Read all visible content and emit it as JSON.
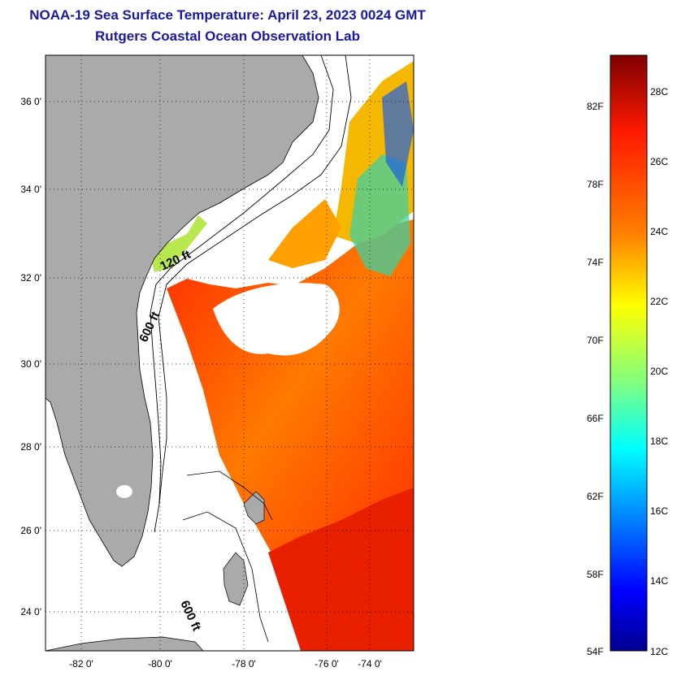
{
  "header": {
    "title": "NOAA-19 Sea Surface Temperature:  April 23, 2023 0024 GMT",
    "subtitle": "Rutgers Coastal Ocean Observation Lab"
  },
  "map": {
    "latitude_labels": [
      "36 0'",
      "34 0'",
      "32 0'",
      "30 0'",
      "28 0'",
      "26 0'",
      "24 0'"
    ],
    "longitude_labels": [
      "-82 0'",
      "-80 0'",
      "-78 0'",
      "-76 0'",
      "-74 0'"
    ],
    "depth_labels": [
      "120 ft",
      "600 ft",
      "600 ft"
    ],
    "colors": {
      "land": "#aaaaaa",
      "no_data": "#ffffff",
      "frame": "#000000"
    }
  },
  "colorbar": {
    "fahrenheit_labels": [
      "82F",
      "78F",
      "74F",
      "70F",
      "66F",
      "62F",
      "58F",
      "54F"
    ],
    "celsius_labels": [
      "28C",
      "26C",
      "24C",
      "22C",
      "20C",
      "18C",
      "16C",
      "14C",
      "12C"
    ],
    "colors": [
      "#7f0000",
      "#ff0000",
      "#ff8000",
      "#ffff00",
      "#80ff80",
      "#00ffff",
      "#0080ff",
      "#0000ff",
      "#00008f"
    ]
  }
}
